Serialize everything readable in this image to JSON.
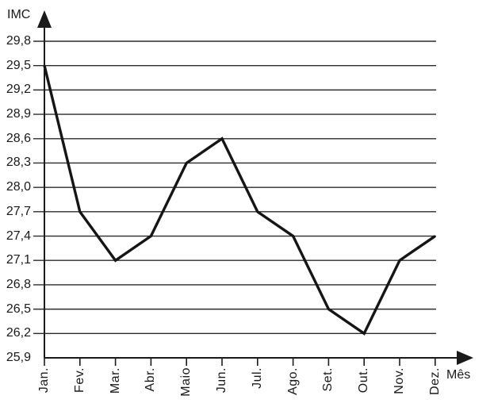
{
  "chart_data": {
    "type": "line",
    "title": "",
    "ylabel": "IMC",
    "xlabel": "Mês",
    "categories": [
      "Jan.",
      "Fev.",
      "Mar.",
      "Abr.",
      "Maio",
      "Jun.",
      "Jul.",
      "Ago.",
      "Set.",
      "Out.",
      "Nov.",
      "Dez."
    ],
    "series": [
      {
        "name": "IMC",
        "values": [
          29.5,
          27.7,
          27.1,
          27.4,
          28.3,
          28.6,
          27.7,
          27.4,
          26.5,
          26.2,
          27.1,
          27.4
        ]
      }
    ],
    "y_ticks": [
      {
        "value": 29.8,
        "label": "29,8"
      },
      {
        "value": 29.5,
        "label": "29,5"
      },
      {
        "value": 29.2,
        "label": "29,2"
      },
      {
        "value": 28.9,
        "label": "28,9"
      },
      {
        "value": 28.6,
        "label": "28,6"
      },
      {
        "value": 28.3,
        "label": "28,3"
      },
      {
        "value": 28.0,
        "label": "28,0"
      },
      {
        "value": 27.7,
        "label": "27,7"
      },
      {
        "value": 27.4,
        "label": "27,4"
      },
      {
        "value": 27.1,
        "label": "27,1"
      },
      {
        "value": 26.8,
        "label": "26,8"
      },
      {
        "value": 26.5,
        "label": "26,5"
      },
      {
        "value": 26.2,
        "label": "26,2"
      },
      {
        "value": 25.9,
        "label": "25,9"
      }
    ],
    "ylim": [
      25.9,
      29.8
    ],
    "y_step": 0.3,
    "grid": true,
    "legend": false,
    "line_color": "#151515",
    "grid_color": "#2b2b2b",
    "axis_color": "#1a1a1a",
    "text_color": "#1a1a1a",
    "background_color": "#ffffff"
  }
}
